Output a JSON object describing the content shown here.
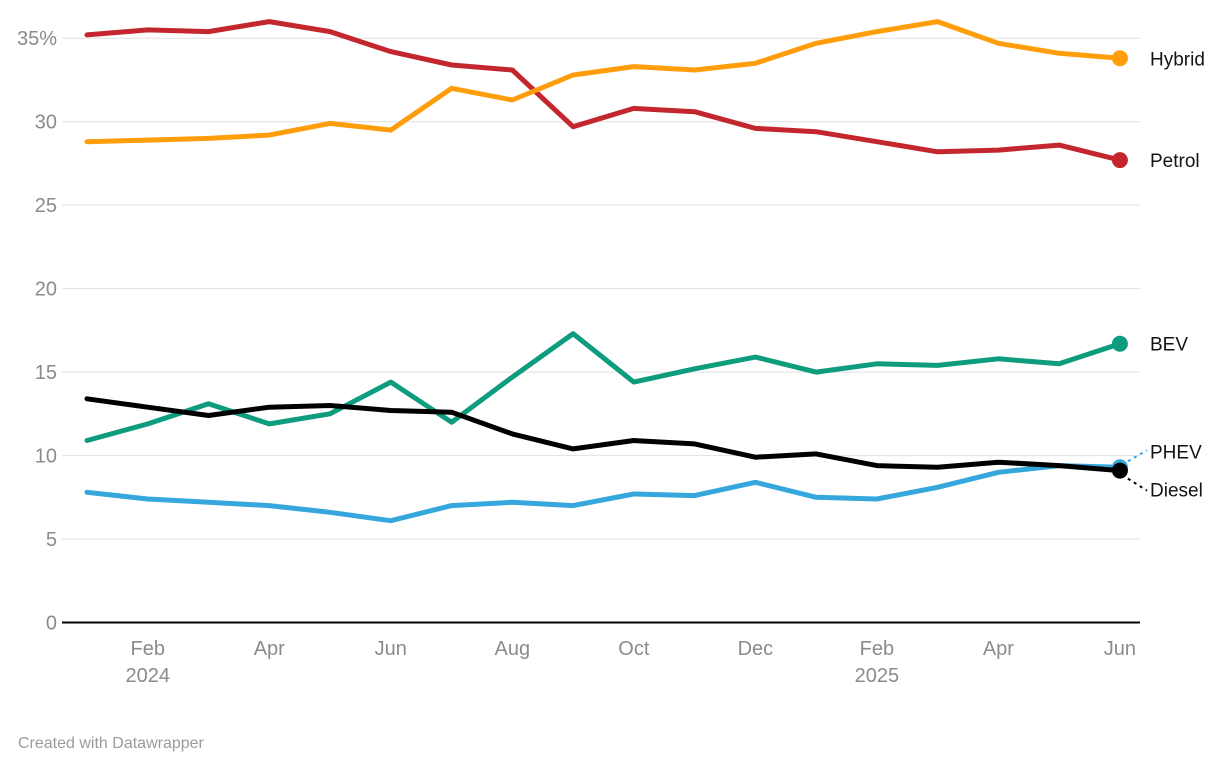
{
  "footer": {
    "credit": "Created with Datawrapper"
  },
  "chart_data": {
    "type": "line",
    "title": "",
    "xlabel": "",
    "ylabel": "",
    "ylim": [
      0,
      37
    ],
    "grid": "horizontal",
    "legend_position": "right-of-line-ends",
    "y_ticks": [
      {
        "value": 0,
        "label": "0"
      },
      {
        "value": 5,
        "label": "5"
      },
      {
        "value": 10,
        "label": "10"
      },
      {
        "value": 15,
        "label": "15"
      },
      {
        "value": 20,
        "label": "20"
      },
      {
        "value": 25,
        "label": "25"
      },
      {
        "value": 30,
        "label": "30"
      },
      {
        "value": 35,
        "label": "35%"
      }
    ],
    "x_ticks": [
      {
        "month_index": 1,
        "label": "Feb",
        "sublabel": "2024"
      },
      {
        "month_index": 3,
        "label": "Apr",
        "sublabel": ""
      },
      {
        "month_index": 5,
        "label": "Jun",
        "sublabel": ""
      },
      {
        "month_index": 7,
        "label": "Aug",
        "sublabel": ""
      },
      {
        "month_index": 9,
        "label": "Oct",
        "sublabel": ""
      },
      {
        "month_index": 11,
        "label": "Dec",
        "sublabel": ""
      },
      {
        "month_index": 13,
        "label": "Feb",
        "sublabel": "2025"
      },
      {
        "month_index": 15,
        "label": "Apr",
        "sublabel": ""
      },
      {
        "month_index": 17,
        "label": "Jun",
        "sublabel": ""
      }
    ],
    "categories": [
      "Jan 2024",
      "Feb 2024",
      "Mar 2024",
      "Apr 2024",
      "May 2024",
      "Jun 2024",
      "Jul 2024",
      "Aug 2024",
      "Sep 2024",
      "Oct 2024",
      "Nov 2024",
      "Dec 2024",
      "Jan 2025",
      "Feb 2025",
      "Mar 2025",
      "Apr 2025",
      "May 2025",
      "Jun 2025"
    ],
    "series": [
      {
        "name": "Hybrid",
        "color": "#ff9d0a",
        "values": [
          28.8,
          28.9,
          29.0,
          29.2,
          29.9,
          29.5,
          32.0,
          31.3,
          32.8,
          33.3,
          33.1,
          33.5,
          34.7,
          35.4,
          36.0,
          34.7,
          34.1,
          33.8
        ],
        "label_offset": 7,
        "leader": null
      },
      {
        "name": "Petrol",
        "color": "#c4262e",
        "values": [
          35.2,
          35.5,
          35.4,
          36.0,
          35.4,
          34.2,
          33.4,
          33.1,
          29.7,
          30.8,
          30.6,
          29.6,
          29.4,
          28.8,
          28.2,
          28.3,
          28.6,
          27.7
        ],
        "label_offset": 7,
        "leader": null
      },
      {
        "name": "BEV",
        "color": "#0d9c7d",
        "values": [
          10.9,
          11.9,
          13.1,
          11.9,
          12.5,
          14.4,
          12.0,
          14.7,
          17.3,
          14.4,
          15.2,
          15.9,
          15.0,
          15.5,
          15.4,
          15.8,
          15.5,
          16.7
        ],
        "label_offset": 7,
        "leader": null
      },
      {
        "name": "PHEV",
        "color": "#36a7dc",
        "values": [
          7.8,
          7.4,
          7.2,
          7.0,
          6.6,
          6.1,
          7.0,
          7.2,
          7.0,
          7.7,
          7.6,
          8.4,
          7.5,
          7.4,
          8.1,
          9.0,
          9.4,
          9.3
        ],
        "label_offset": -9,
        "leader": "up"
      },
      {
        "name": "Diesel",
        "color": "#000000",
        "values": [
          13.4,
          12.9,
          12.4,
          12.9,
          13.0,
          12.7,
          12.6,
          11.3,
          10.4,
          10.9,
          10.7,
          9.9,
          10.1,
          9.4,
          9.3,
          9.6,
          9.4,
          9.1
        ],
        "label_offset": 26,
        "leader": "down"
      }
    ],
    "colors": {
      "gridline": "#e0e0e0",
      "axis_line": "#000000",
      "tick_label": "#8b8b8b",
      "series_label": "#141414"
    }
  }
}
